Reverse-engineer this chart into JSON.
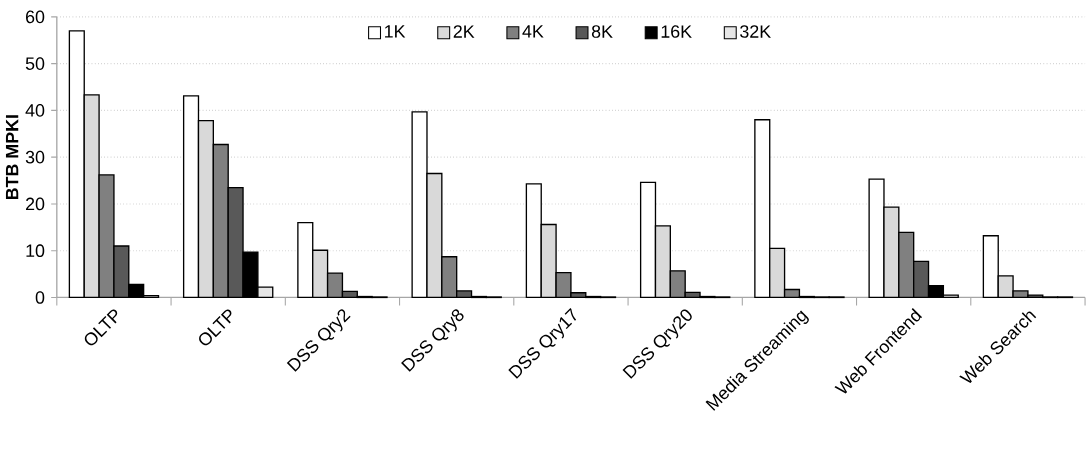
{
  "chart_data": {
    "type": "bar",
    "ylabel": "BTB MPKI",
    "categories": [
      "OLTP",
      "OLTP",
      "DSS Qry2",
      "DSS Qry8",
      "DSS Qry17",
      "DSS Qry20",
      "Media Streaming",
      "Web Frontend",
      "Web Search"
    ],
    "series": [
      {
        "name": "1K",
        "color": "#ffffff",
        "values": [
          57,
          43.1,
          16,
          39.7,
          24.3,
          24.6,
          38,
          25.3,
          13.2
        ]
      },
      {
        "name": "2K",
        "color": "#d9d9d9",
        "values": [
          43.3,
          37.8,
          10.1,
          26.5,
          15.6,
          15.3,
          10.5,
          19.3,
          4.6
        ]
      },
      {
        "name": "4K",
        "color": "#808080",
        "values": [
          26.2,
          32.7,
          5.2,
          8.7,
          5.3,
          5.7,
          1.7,
          13.9,
          1.4
        ]
      },
      {
        "name": "8K",
        "color": "#595959",
        "values": [
          11,
          23.5,
          1.3,
          1.4,
          1.0,
          1.1,
          0.2,
          7.7,
          0.5
        ]
      },
      {
        "name": "16K",
        "color": "#000000",
        "values": [
          2.8,
          9.7,
          0.2,
          0.2,
          0.2,
          0.2,
          0.1,
          2.5,
          0.1
        ]
      },
      {
        "name": "32K",
        "color": "#e6e6e6",
        "values": [
          0.4,
          2.2,
          0.1,
          0.1,
          0.1,
          0.1,
          0.1,
          0.5,
          0.1
        ]
      }
    ],
    "ylim": [
      0,
      60
    ],
    "yticks": [
      0,
      10,
      20,
      30,
      40,
      50,
      60
    ],
    "grid": "y",
    "legend": "top"
  }
}
